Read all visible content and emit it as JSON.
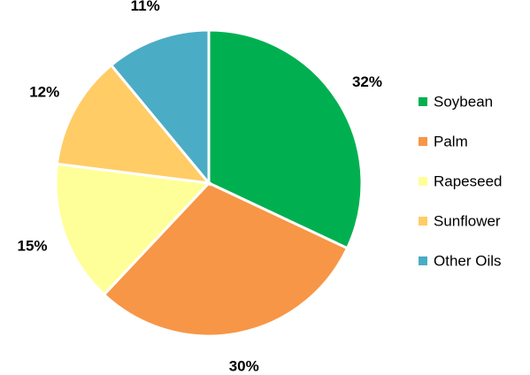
{
  "chart_data": {
    "type": "pie",
    "categories": [
      "Soybean",
      "Palm",
      "Rapeseed",
      "Sunflower",
      "Other Oils"
    ],
    "values": [
      32,
      30,
      15,
      12,
      11
    ],
    "value_labels": [
      "32%",
      "30%",
      "15%",
      "12%",
      "11%"
    ],
    "colors": [
      "#00b050",
      "#f79646",
      "#ffff99",
      "#ffcc66",
      "#4bacc6"
    ],
    "legend": "right"
  }
}
